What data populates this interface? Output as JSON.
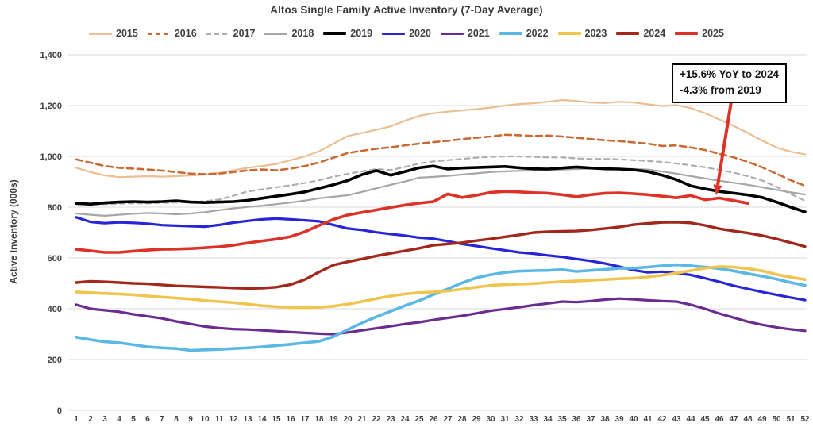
{
  "title": "Altos Single Family Active Inventory (7-Day Average)",
  "y_axis_title": "Active Inventory (000s)",
  "annotation": {
    "line1": "+15.6% YoY to 2024",
    "line2": "-4.3% from 2019"
  },
  "colors": {
    "background": "#FFFFFF",
    "gridline": "#D9D9D9",
    "text": "#3F3F3F",
    "title_text": "#3B3B3B",
    "annotation_border": "#000000",
    "arrow": "#DD3226"
  },
  "chart_data": {
    "type": "line",
    "title": "Altos Single Family Active Inventory (7-Day Average)",
    "xlabel": "",
    "ylabel": "Active Inventory (000s)",
    "ylim": [
      0,
      1400
    ],
    "grid": "horizontal",
    "legend_position": "top",
    "y_ticks": [
      {
        "v": 0,
        "label": "0"
      },
      {
        "v": 200,
        "label": "200"
      },
      {
        "v": 400,
        "label": "400"
      },
      {
        "v": 600,
        "label": "600"
      },
      {
        "v": 800,
        "label": "800"
      },
      {
        "v": 1000,
        "label": "1,000"
      },
      {
        "v": 1200,
        "label": "1,200"
      },
      {
        "v": 1400,
        "label": "1,400"
      }
    ],
    "weeks": [
      1,
      2,
      3,
      4,
      5,
      6,
      7,
      8,
      9,
      10,
      11,
      12,
      13,
      14,
      15,
      16,
      17,
      18,
      19,
      20,
      21,
      22,
      23,
      24,
      25,
      26,
      27,
      28,
      29,
      30,
      31,
      32,
      33,
      34,
      35,
      36,
      37,
      38,
      39,
      40,
      41,
      42,
      43,
      44,
      45,
      46,
      47,
      48,
      49,
      50,
      51,
      52
    ],
    "series": [
      {
        "name": "2015",
        "color": "#EDBE93",
        "dash": "",
        "width": 2.2,
        "values": [
          955,
          938,
          925,
          918,
          920,
          922,
          920,
          922,
          925,
          928,
          935,
          945,
          955,
          962,
          970,
          985,
          1000,
          1020,
          1050,
          1080,
          1092,
          1105,
          1118,
          1140,
          1159,
          1170,
          1176,
          1181,
          1186,
          1192,
          1200,
          1206,
          1209,
          1215,
          1222,
          1218,
          1212,
          1210,
          1215,
          1212,
          1205,
          1198,
          1202,
          1190,
          1170,
          1145,
          1120,
          1092,
          1062,
          1035,
          1018,
          1008
        ]
      },
      {
        "name": "2016",
        "color": "#C96A34",
        "dash": "8 5",
        "width": 2.6,
        "values": [
          988,
          975,
          962,
          955,
          952,
          948,
          944,
          938,
          932,
          930,
          932,
          938,
          945,
          948,
          945,
          952,
          962,
          976,
          995,
          1013,
          1022,
          1030,
          1036,
          1043,
          1050,
          1056,
          1061,
          1068,
          1073,
          1078,
          1085,
          1083,
          1080,
          1082,
          1078,
          1073,
          1068,
          1063,
          1060,
          1055,
          1050,
          1041,
          1043,
          1035,
          1025,
          1010,
          996,
          978,
          957,
          932,
          906,
          884
        ]
      },
      {
        "name": "2017",
        "color": "#ADADAD",
        "dash": "6 5",
        "width": 2.2,
        "values": [
          812,
          810,
          812,
          814,
          815,
          815,
          817,
          818,
          820,
          823,
          830,
          845,
          862,
          870,
          878,
          886,
          895,
          906,
          920,
          931,
          941,
          950,
          946,
          958,
          972,
          980,
          985,
          990,
          995,
          998,
          1000,
          1000,
          998,
          996,
          996,
          992,
          990,
          990,
          988,
          985,
          982,
          978,
          972,
          965,
          957,
          947,
          936,
          922,
          905,
          880,
          852,
          825
        ]
      },
      {
        "name": "2018",
        "color": "#A6A6A6",
        "dash": "",
        "width": 2.2,
        "values": [
          775,
          770,
          766,
          770,
          774,
          777,
          775,
          772,
          775,
          780,
          788,
          795,
          801,
          806,
          812,
          818,
          826,
          835,
          841,
          847,
          860,
          874,
          888,
          901,
          916,
          919,
          923,
          928,
          933,
          938,
          941,
          943,
          944,
          946,
          948,
          950,
          952,
          953,
          951,
          950,
          948,
          940,
          932,
          922,
          913,
          904,
          896,
          888,
          878,
          868,
          858,
          850
        ]
      },
      {
        "name": "2019",
        "color": "#000000",
        "dash": "",
        "width": 3.6,
        "values": [
          815,
          812,
          817,
          820,
          822,
          820,
          822,
          825,
          820,
          818,
          820,
          822,
          827,
          835,
          843,
          851,
          860,
          874,
          888,
          905,
          928,
          944,
          926,
          940,
          955,
          962,
          950,
          954,
          956,
          958,
          960,
          955,
          951,
          950,
          954,
          958,
          954,
          951,
          950,
          947,
          940,
          926,
          908,
          884,
          872,
          862,
          855,
          848,
          838,
          820,
          800,
          781
        ]
      },
      {
        "name": "2020",
        "color": "#2626D8",
        "dash": "",
        "width": 3.2,
        "values": [
          760,
          742,
          737,
          740,
          738,
          735,
          729,
          727,
          725,
          723,
          730,
          739,
          746,
          752,
          755,
          752,
          748,
          744,
          730,
          716,
          710,
          701,
          694,
          688,
          680,
          676,
          666,
          655,
          647,
          638,
          630,
          622,
          617,
          610,
          604,
          596,
          588,
          578,
          566,
          552,
          543,
          546,
          540,
          533,
          520,
          506,
          491,
          478,
          466,
          455,
          444,
          434
        ]
      },
      {
        "name": "2021",
        "color": "#6B2C91",
        "dash": "",
        "width": 3.2,
        "values": [
          416,
          400,
          394,
          388,
          378,
          370,
          362,
          350,
          340,
          330,
          324,
          320,
          318,
          315,
          312,
          308,
          305,
          302,
          300,
          307,
          315,
          323,
          331,
          340,
          347,
          356,
          364,
          372,
          382,
          392,
          399,
          406,
          414,
          421,
          428,
          426,
          430,
          436,
          440,
          437,
          433,
          430,
          428,
          416,
          400,
          381,
          365,
          349,
          337,
          327,
          319,
          313
        ]
      },
      {
        "name": "2022",
        "color": "#5BB8E4",
        "dash": "",
        "width": 3.6,
        "values": [
          288,
          278,
          270,
          266,
          258,
          250,
          246,
          243,
          236,
          238,
          240,
          243,
          246,
          250,
          255,
          260,
          266,
          272,
          290,
          318,
          344,
          368,
          390,
          412,
          432,
          456,
          478,
          502,
          522,
          534,
          543,
          548,
          550,
          551,
          554,
          547,
          551,
          555,
          559,
          560,
          564,
          569,
          573,
          569,
          564,
          558,
          549,
          538,
          528,
          517,
          503,
          492
        ]
      },
      {
        "name": "2023",
        "color": "#EEC54F",
        "dash": "",
        "width": 3.6,
        "values": [
          466,
          463,
          460,
          458,
          455,
          450,
          446,
          442,
          438,
          432,
          428,
          424,
          418,
          412,
          408,
          405,
          404,
          406,
          410,
          418,
          428,
          440,
          450,
          458,
          463,
          466,
          470,
          477,
          485,
          492,
          495,
          497,
          499,
          503,
          507,
          509,
          512,
          515,
          518,
          520,
          525,
          532,
          540,
          550,
          560,
          566,
          564,
          558,
          549,
          535,
          524,
          515
        ]
      },
      {
        "name": "2024",
        "color": "#A3281C",
        "dash": "",
        "width": 3.4,
        "values": [
          503,
          508,
          506,
          503,
          500,
          498,
          494,
          490,
          488,
          486,
          484,
          482,
          480,
          481,
          485,
          495,
          515,
          545,
          572,
          585,
          596,
          608,
          618,
          628,
          638,
          650,
          655,
          660,
          668,
          675,
          683,
          691,
          700,
          703,
          705,
          706,
          710,
          716,
          722,
          731,
          736,
          740,
          741,
          738,
          728,
          715,
          706,
          698,
          688,
          675,
          660,
          645
        ]
      },
      {
        "name": "2025",
        "color": "#DD3226",
        "dash": "",
        "width": 3.6,
        "values": [
          634,
          628,
          622,
          622,
          627,
          631,
          634,
          635,
          637,
          640,
          644,
          650,
          659,
          667,
          674,
          684,
          703,
          728,
          752,
          769,
          779,
          789,
          799,
          808,
          816,
          822,
          852,
          838,
          847,
          858,
          862,
          860,
          857,
          855,
          849,
          841,
          849,
          855,
          856,
          853,
          849,
          843,
          837,
          846,
          829,
          836,
          826,
          815
        ]
      }
    ]
  }
}
